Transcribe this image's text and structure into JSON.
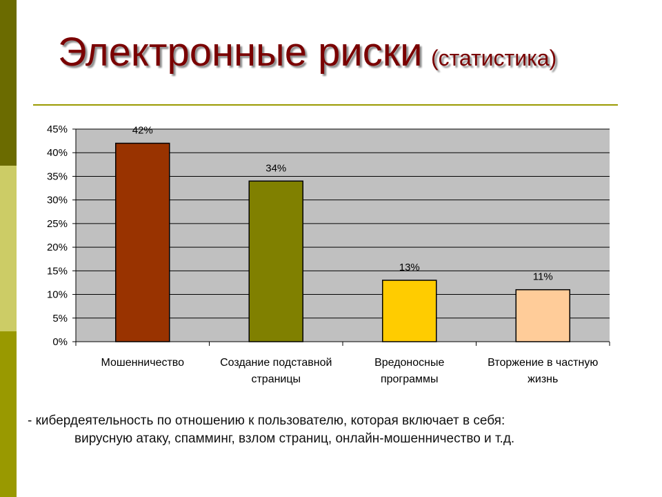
{
  "slide": {
    "title": "Электронные риски",
    "title_suffix": "(статистика)",
    "caption_line1": "- кибердеятельность по отношению к пользователю, которая включает в себя:",
    "caption_line2": "вирусную атаку, спамминг, взлом страниц, онлайн-мошенничество и т.д."
  },
  "colors": {
    "title": "#7a0000",
    "plot_background": "#c0c0c0",
    "accent_strip": [
      "#6b6b00",
      "#cccc66",
      "#999900"
    ]
  },
  "chart_data": {
    "type": "bar",
    "categories": [
      [
        "Мошенничество"
      ],
      [
        "Создание подставной",
        "страницы"
      ],
      [
        "Вредоносные",
        "программы"
      ],
      [
        "Вторжение в частную",
        "жизнь"
      ]
    ],
    "values": [
      42,
      34,
      13,
      11
    ],
    "data_labels": [
      "42%",
      "34%",
      "13%",
      "11%"
    ],
    "bar_colors": [
      "#993300",
      "#808000",
      "#ffcc00",
      "#ffcc99"
    ],
    "ylim": [
      0,
      45
    ],
    "yticks": [
      0,
      5,
      10,
      15,
      20,
      25,
      30,
      35,
      40,
      45
    ],
    "ytick_labels": [
      "0%",
      "5%",
      "10%",
      "15%",
      "20%",
      "25%",
      "30%",
      "35%",
      "40%",
      "45%"
    ],
    "grid": true,
    "legend": "none"
  }
}
